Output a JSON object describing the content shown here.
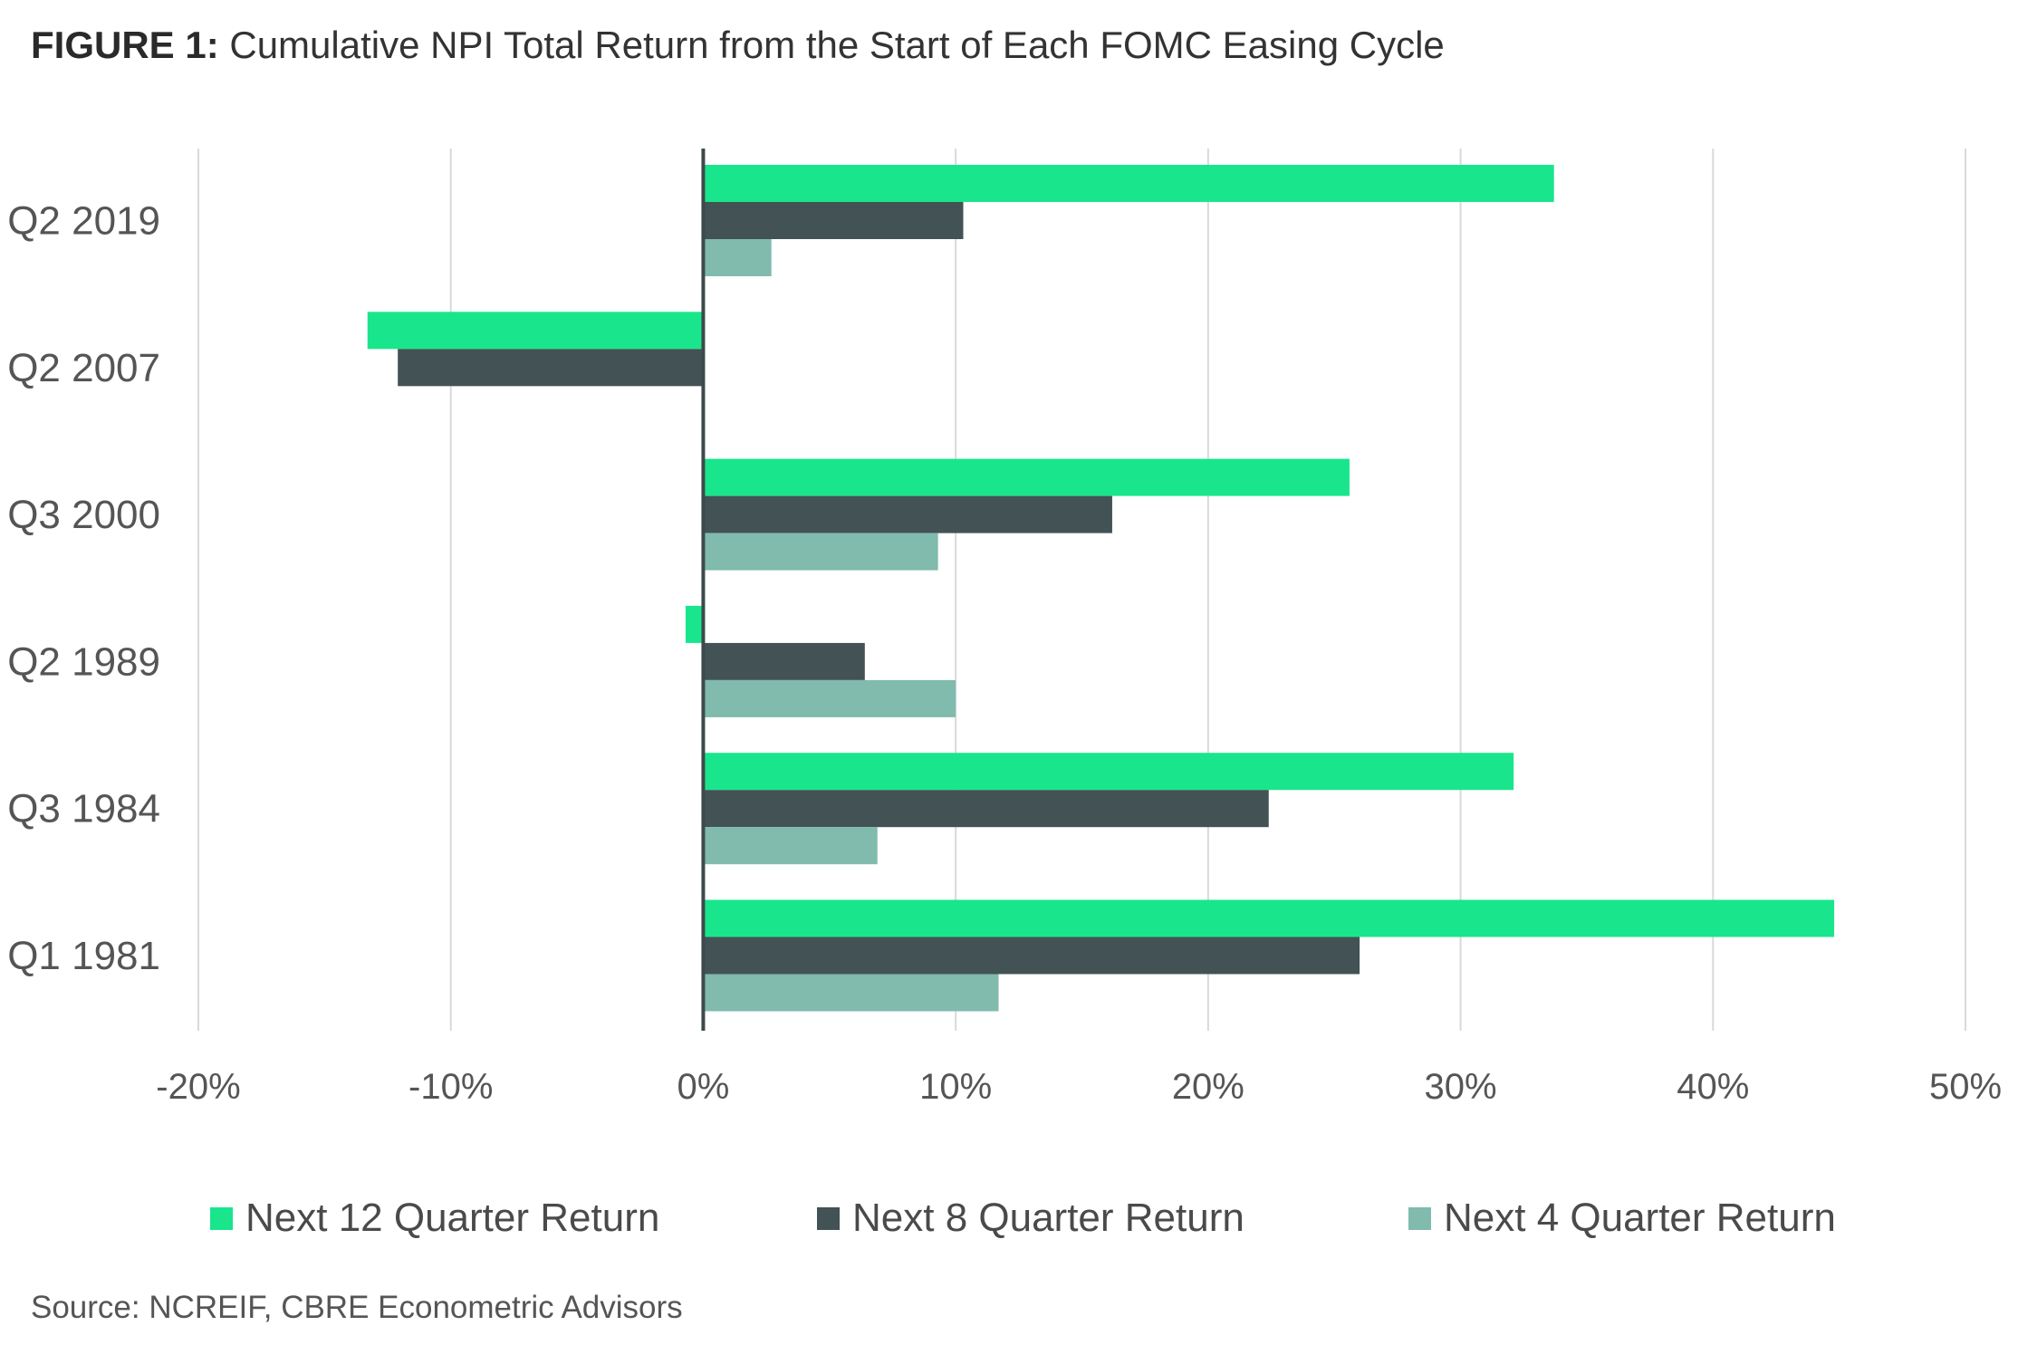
{
  "figure": {
    "title_lead": "FIGURE 1:",
    "title_rest": "Cumulative NPI Total Return from the Start of Each FOMC Easing Cycle",
    "source": "Source: NCREIF, CBRE Econometric Advisors"
  },
  "chart_data": {
    "type": "bar",
    "orientation": "horizontal",
    "categories": [
      "Q2 2019",
      "Q2 2007",
      "Q3 2000",
      "Q2 1989",
      "Q3 1984",
      "Q1 1981"
    ],
    "series": [
      {
        "name": "Next 12 Quarter Return",
        "color": "#19E68C",
        "values": [
          33.7,
          -13.3,
          25.6,
          -0.7,
          32.1,
          44.8
        ]
      },
      {
        "name": "Next 8 Quarter Return",
        "color": "#435254",
        "values": [
          10.3,
          -12.1,
          16.2,
          6.4,
          22.4,
          26.0
        ]
      },
      {
        "name": "Next 4 Quarter Return",
        "color": "#80BBAD",
        "values": [
          2.7,
          0.0,
          9.3,
          10.0,
          6.9,
          11.7
        ]
      }
    ],
    "xlim": [
      -20,
      50
    ],
    "xticks": [
      -20,
      -10,
      0,
      10,
      20,
      30,
      40,
      50
    ],
    "xtick_labels": [
      "-20%",
      "-10%",
      "0%",
      "10%",
      "20%",
      "30%",
      "40%",
      "50%"
    ],
    "grid": true,
    "legend_position": "bottom"
  }
}
